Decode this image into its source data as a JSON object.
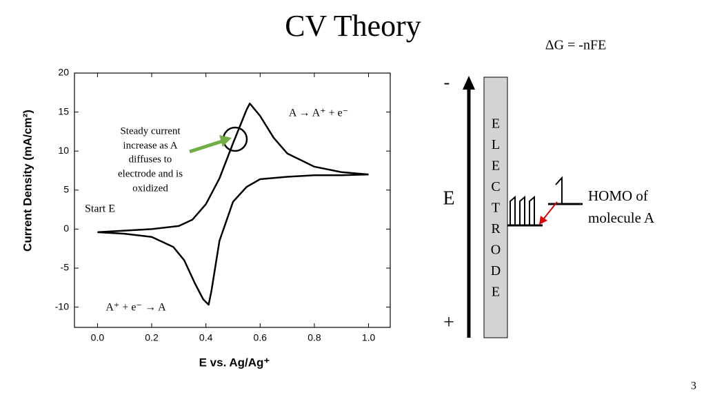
{
  "slide_title": "CV Theory",
  "equation": "ΔG = -nFE",
  "page_number": "3",
  "diagram": {
    "minus": "-",
    "axis_label": "E",
    "plus": "+",
    "electrode_letters": [
      "E",
      "L",
      "E",
      "C",
      "T",
      "R",
      "O",
      "D",
      "E"
    ],
    "homo_label": [
      "HOMO of",
      "molecule A"
    ]
  },
  "chart_data": {
    "type": "line",
    "x_label": "E vs. Ag/Ag⁺",
    "y_label": "Current Density (mA/cm²)",
    "xlim": [
      -0.085,
      1.08
    ],
    "ylim": [
      -12.6,
      20
    ],
    "xticks": [
      {
        "value": 0,
        "label": "0.0"
      },
      {
        "value": 0.2,
        "label": "0.2"
      },
      {
        "value": 0.4,
        "label": "0.4"
      },
      {
        "value": 0.6,
        "label": "0.6"
      },
      {
        "value": 0.8,
        "label": "0.8"
      },
      {
        "value": 1,
        "label": "1.0"
      }
    ],
    "yticks": [
      -10,
      -5,
      0,
      5,
      10,
      15,
      20
    ],
    "series": [
      {
        "color": "#000000",
        "x": [
          0.0,
          0.1,
          0.2,
          0.3,
          0.35,
          0.4,
          0.45,
          0.5,
          0.55,
          0.562,
          0.6,
          0.65,
          0.7,
          0.8,
          0.9,
          1.0
        ],
        "values": [
          -0.4,
          -0.2,
          0.0,
          0.4,
          1.2,
          3.2,
          6.5,
          11.0,
          15.3,
          16.1,
          14.5,
          11.7,
          9.7,
          8.0,
          7.3,
          7.0
        ]
      },
      {
        "color": "#000000",
        "x": [
          1.0,
          0.9,
          0.8,
          0.7,
          0.6,
          0.55,
          0.5,
          0.45,
          0.42,
          0.41,
          0.39,
          0.36,
          0.32,
          0.28,
          0.2,
          0.1,
          0.0
        ],
        "values": [
          7.0,
          6.9,
          6.9,
          6.7,
          6.4,
          5.4,
          3.5,
          -1.5,
          -8.0,
          -9.7,
          -9.0,
          -7.0,
          -4.0,
          -2.3,
          -1.0,
          -0.6,
          -0.4
        ]
      }
    ],
    "annotations": {
      "start": "Start E",
      "steady": [
        "Steady current",
        "increase as A",
        "diffuses to",
        "electrode and is",
        "oxidized"
      ],
      "oxidation": "A → A⁺ + e⁻",
      "reduction": "A⁺ + e⁻ → A"
    }
  }
}
